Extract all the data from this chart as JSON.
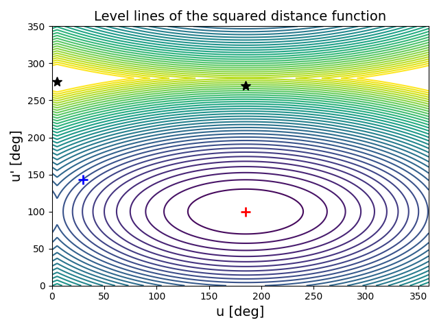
{
  "title": "Level lines of the squared distance function",
  "xlabel": "u [deg]",
  "ylabel": "u' [deg]",
  "xlim": [
    0,
    360
  ],
  "ylim": [
    0,
    350
  ],
  "red_plus": [
    185,
    100
  ],
  "blue_plus": [
    30,
    143
  ],
  "star1": [
    5,
    275
  ],
  "star2": [
    185,
    270
  ],
  "n_levels": 40,
  "cmap": "viridis",
  "figsize": [
    6.4,
    4.8
  ],
  "dpi": 100,
  "metric_a": 1.0,
  "metric_b": 0.5,
  "metric_scale_u": 1.0,
  "metric_scale_up": 0.55
}
